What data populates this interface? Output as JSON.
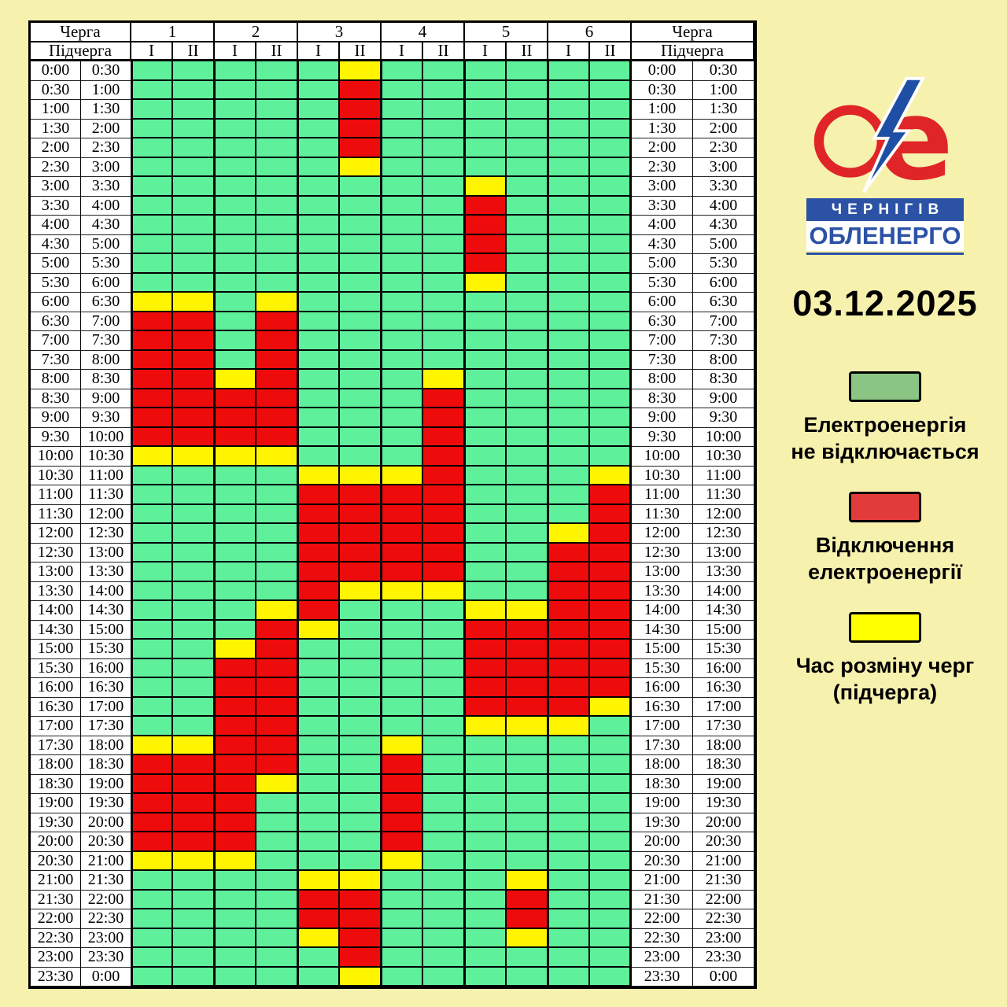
{
  "date": "03.12.2025",
  "logo": {
    "city": "ЧЕРНІГІВ",
    "company": "ОБЛЕНЕРГО"
  },
  "table_header": {
    "queue": "Черга",
    "subqueue": "Підчерга",
    "groups": [
      "1",
      "2",
      "3",
      "4",
      "5",
      "6"
    ],
    "subgroups": [
      "I",
      "II"
    ]
  },
  "legend": {
    "items": [
      {
        "key": "on",
        "label": "Електроенергія\nне відключається"
      },
      {
        "key": "off",
        "label": "Відключення\nелектроенергії"
      },
      {
        "key": "swap",
        "label": "Час розміну черг\n(підчерга)"
      }
    ]
  },
  "colors": {
    "background": "#F7F1AE",
    "cell_on": "#5FF09B",
    "cell_off": "#EE0B0B",
    "cell_swap": "#FFF500",
    "legend_on": "#8AC584",
    "legend_off": "#E23B3B",
    "legend_swap": "#FFFF00",
    "logo_red": "#E02528",
    "logo_blue": "#1E4FA5",
    "banner_blue": "#2C52A6"
  },
  "chart_data": {
    "type": "heatmap",
    "title": "Power outage schedule 03.12.2025 (Chernihivoblenergo)",
    "legend_position": "right",
    "cell_states": {
      "g": "Електроенергія не відключається",
      "r": "Відключення електроенергії",
      "y": "Час розміну черг (підчерга)"
    },
    "columns": [
      "1-I",
      "1-II",
      "2-I",
      "2-II",
      "3-I",
      "3-II",
      "4-I",
      "4-II",
      "5-I",
      "5-II",
      "6-I",
      "6-II"
    ],
    "time_rows": [
      [
        "0:00",
        "0:30"
      ],
      [
        "0:30",
        "1:00"
      ],
      [
        "1:00",
        "1:30"
      ],
      [
        "1:30",
        "2:00"
      ],
      [
        "2:00",
        "2:30"
      ],
      [
        "2:30",
        "3:00"
      ],
      [
        "3:00",
        "3:30"
      ],
      [
        "3:30",
        "4:00"
      ],
      [
        "4:00",
        "4:30"
      ],
      [
        "4:30",
        "5:00"
      ],
      [
        "5:00",
        "5:30"
      ],
      [
        "5:30",
        "6:00"
      ],
      [
        "6:00",
        "6:30"
      ],
      [
        "6:30",
        "7:00"
      ],
      [
        "7:00",
        "7:30"
      ],
      [
        "7:30",
        "8:00"
      ],
      [
        "8:00",
        "8:30"
      ],
      [
        "8:30",
        "9:00"
      ],
      [
        "9:00",
        "9:30"
      ],
      [
        "9:30",
        "10:00"
      ],
      [
        "10:00",
        "10:30"
      ],
      [
        "10:30",
        "11:00"
      ],
      [
        "11:00",
        "11:30"
      ],
      [
        "11:30",
        "12:00"
      ],
      [
        "12:00",
        "12:30"
      ],
      [
        "12:30",
        "13:00"
      ],
      [
        "13:00",
        "13:30"
      ],
      [
        "13:30",
        "14:00"
      ],
      [
        "14:00",
        "14:30"
      ],
      [
        "14:30",
        "15:00"
      ],
      [
        "15:00",
        "15:30"
      ],
      [
        "15:30",
        "16:00"
      ],
      [
        "16:00",
        "16:30"
      ],
      [
        "16:30",
        "17:00"
      ],
      [
        "17:00",
        "17:30"
      ],
      [
        "17:30",
        "18:00"
      ],
      [
        "18:00",
        "18:30"
      ],
      [
        "18:30",
        "19:00"
      ],
      [
        "19:00",
        "19:30"
      ],
      [
        "19:30",
        "20:00"
      ],
      [
        "20:00",
        "20:30"
      ],
      [
        "20:30",
        "21:00"
      ],
      [
        "21:00",
        "21:30"
      ],
      [
        "21:30",
        "22:00"
      ],
      [
        "22:00",
        "22:30"
      ],
      [
        "22:30",
        "23:00"
      ],
      [
        "23:00",
        "23:30"
      ],
      [
        "23:30",
        "0:00"
      ]
    ],
    "cells": [
      "gggggygggggg",
      "gggggrgggggg",
      "gggggrgggggg",
      "gggggrgggggg",
      "gggggrgggggg",
      "gggggygggggg",
      "ggggggggyggg",
      "ggggggggrggg",
      "ggggggggrggg",
      "ggggggggrggg",
      "ggggggggrggg",
      "ggggggggyggg",
      "yygygggggggg",
      "rrgrgggggggg",
      "rrgrgggggggg",
      "rrgrgggggggg",
      "rryrgggygggg",
      "rrrrgggrgggg",
      "rrrrgggrgggg",
      "rrrrgggrgggg",
      "yyyygggrgggg",
      "ggggyyyrgggy",
      "ggggrrrrgggr",
      "ggggrrrrgggr",
      "ggggrrrrggyr",
      "ggggrrrrggrr",
      "ggggrrrrggrr",
      "ggggryyyggrr",
      "gggyrgggyyrr",
      "gggrygggrrrr",
      "ggyrggggrrrr",
      "ggrrggggrrrr",
      "ggrrggggrrrr",
      "ggrrggggrrry",
      "ggrrggggyyyg",
      "yyrrggyggggg",
      "rrrrggrggggg",
      "rrryggrggggg",
      "rrrgggrggggg",
      "rrrgggrggggg",
      "rrrgggrggggg",
      "yyygggyggggg",
      "ggggyygggygg",
      "ggggrrgggrgg",
      "ggggrrgggrgg",
      "ggggyrgggygg",
      "gggggrgggggg",
      "gggggygggggg"
    ]
  }
}
